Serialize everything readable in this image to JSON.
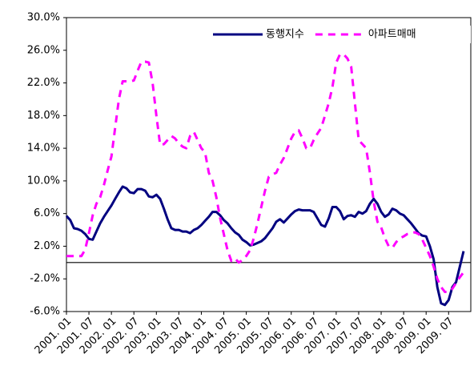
{
  "chart_data": {
    "type": "line",
    "categories": [
      "2001. 01",
      null,
      null,
      null,
      null,
      null,
      "2001. 07",
      null,
      null,
      null,
      null,
      null,
      "2002. 01",
      null,
      null,
      null,
      null,
      null,
      "2002. 07",
      null,
      null,
      null,
      null,
      null,
      "2003. 01",
      null,
      null,
      null,
      null,
      null,
      "2003. 07",
      null,
      null,
      null,
      null,
      null,
      "2004. 01",
      null,
      null,
      null,
      null,
      null,
      "2004. 07",
      null,
      null,
      null,
      null,
      null,
      "2005. 01",
      null,
      null,
      null,
      null,
      null,
      "2005. 07",
      null,
      null,
      null,
      null,
      null,
      "2006. 01",
      null,
      null,
      null,
      null,
      null,
      "2006. 07",
      null,
      null,
      null,
      null,
      null,
      "2007. 01",
      null,
      null,
      null,
      null,
      null,
      "2007. 07",
      null,
      null,
      null,
      null,
      null,
      "2008. 01",
      null,
      null,
      null,
      null,
      null,
      "2008. 07",
      null,
      null,
      null,
      null,
      null,
      "2009. 01",
      null,
      null,
      null,
      null,
      null,
      "2009. 07",
      null,
      null,
      null,
      null
    ],
    "series": [
      {
        "name": "동행지수",
        "color": "#000080",
        "dashed": false,
        "values": [
          5.7,
          5.2,
          4.2,
          4.1,
          3.9,
          3.5,
          2.9,
          2.8,
          3.8,
          4.8,
          5.6,
          6.3,
          7.0,
          7.8,
          8.6,
          9.3,
          9.1,
          8.6,
          8.5,
          9.0,
          9.0,
          8.8,
          8.1,
          8.0,
          8.3,
          7.8,
          6.6,
          5.3,
          4.2,
          4.0,
          4.0,
          3.8,
          3.8,
          3.6,
          4.0,
          4.2,
          4.6,
          5.1,
          5.6,
          6.2,
          6.2,
          5.8,
          5.2,
          4.8,
          4.2,
          3.7,
          3.4,
          2.8,
          2.5,
          2.1,
          2.2,
          2.4,
          2.6,
          3.0,
          3.6,
          4.2,
          5.0,
          5.3,
          4.9,
          5.4,
          5.9,
          6.3,
          6.5,
          6.4,
          6.4,
          6.4,
          6.2,
          5.4,
          4.6,
          4.4,
          5.4,
          6.8,
          6.8,
          6.3,
          5.3,
          5.7,
          5.8,
          5.6,
          6.2,
          6.0,
          6.3,
          7.2,
          7.8,
          7.2,
          6.2,
          5.6,
          5.9,
          6.6,
          6.4,
          6.0,
          5.8,
          5.3,
          4.8,
          4.2,
          3.6,
          3.3,
          3.2,
          2.0,
          0.4,
          -3.0,
          -5.0,
          -5.2,
          -4.6,
          -3.0,
          -2.4,
          -0.5,
          1.4
        ]
      },
      {
        "name": "아파트매매",
        "color": "#ff00ff",
        "dashed": true,
        "values": [
          0.8,
          0.8,
          0.8,
          0.8,
          0.8,
          1.6,
          3.6,
          5.8,
          7.2,
          8.0,
          9.5,
          11.3,
          13.0,
          16.5,
          20.0,
          22.2,
          22.2,
          22.2,
          22.3,
          23.5,
          24.6,
          24.6,
          24.5,
          22.0,
          18.0,
          14.4,
          14.5,
          15.0,
          15.5,
          15.2,
          14.6,
          14.2,
          14.0,
          15.5,
          16.0,
          15.0,
          14.0,
          13.5,
          11.0,
          10.0,
          8.0,
          5.5,
          3.5,
          1.5,
          0.2,
          0.5,
          0.0,
          0.3,
          0.8,
          1.5,
          3.0,
          4.8,
          6.8,
          8.8,
          10.5,
          10.8,
          11.0,
          12.0,
          12.8,
          14.0,
          15.2,
          16.0,
          16.2,
          15.2,
          14.0,
          14.0,
          15.0,
          15.8,
          16.5,
          18.0,
          19.5,
          21.5,
          24.5,
          25.5,
          25.5,
          25.0,
          24.0,
          19.5,
          15.0,
          14.5,
          14.0,
          11.0,
          7.5,
          5.0,
          4.3,
          3.0,
          2.0,
          1.8,
          2.5,
          3.0,
          3.2,
          3.5,
          3.6,
          3.7,
          3.5,
          2.8,
          1.8,
          0.8,
          -0.5,
          -2.0,
          -3.0,
          -3.6,
          -3.6,
          -3.2,
          -2.5,
          -1.8,
          -1.2
        ]
      }
    ],
    "ylim": [
      -6,
      30
    ],
    "yticks": [
      {
        "value": -6,
        "label": "-6.0%"
      },
      {
        "value": -2,
        "label": "-2.0%"
      },
      {
        "value": 2,
        "label": "2.0%"
      },
      {
        "value": 6,
        "label": "6.0%"
      },
      {
        "value": 10,
        "label": "10.0%"
      },
      {
        "value": 14,
        "label": "14.0%"
      },
      {
        "value": 18,
        "label": "18.0%"
      },
      {
        "value": 22,
        "label": "22.0%"
      },
      {
        "value": 26,
        "label": "26.0%"
      },
      {
        "value": 30,
        "label": "30.0%"
      }
    ],
    "grid": false,
    "legend": "upper right"
  }
}
